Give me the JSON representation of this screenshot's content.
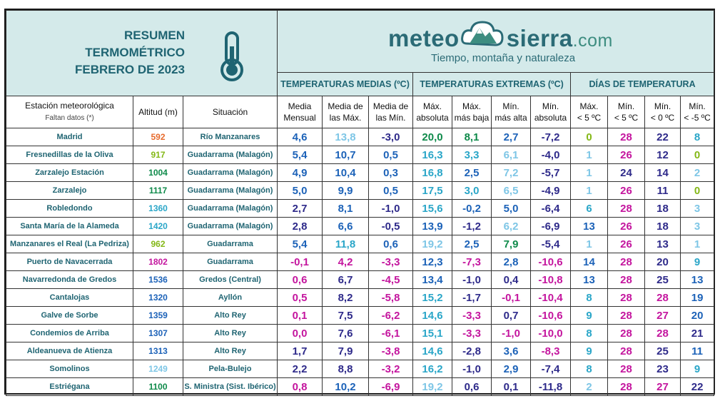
{
  "title": {
    "line1": "RESUMEN",
    "line2": "TERMOMÉTRICO",
    "line3": "FEBRERO DE 2023"
  },
  "logo": {
    "meteo": "meteo",
    "sierra": "sierra",
    "com": ".com",
    "tagline": "Tiempo, montaña y naturaleza"
  },
  "groups": {
    "medias": "TEMPERATURAS MEDIAS (ºC)",
    "extremas": "TEMPERATURAS EXTREMAS (ºC)",
    "dias": "DÍAS DE TEMPERATURA"
  },
  "headers": {
    "estacion": "Estación meteorológica",
    "faltan": "Faltan datos (*)",
    "altitud": "Altitud (m)",
    "situacion": "Situación",
    "media_mensual_1": "Media",
    "media_mensual_2": "Mensual",
    "media_max_1": "Media de",
    "media_max_2": "las Máx.",
    "media_min_1": "Media de",
    "media_min_2": "las Mín.",
    "max_abs_1": "Máx.",
    "max_abs_2": "absoluta",
    "max_baja_1": "Máx.",
    "max_baja_2": "más baja",
    "min_alta_1": "Mín.",
    "min_alta_2": "más alta",
    "min_abs_1": "Mín.",
    "min_abs_2": "absoluta",
    "d_max5_1": "Máx.",
    "d_max5_2": "< 5 ºC",
    "d_min5_1": "Mín.",
    "d_min5_2": "< 5 ºC",
    "d_min0_1": "Mín.",
    "d_min0_2": "< 0 ºC",
    "d_minm5_1": "Mín.",
    "d_minm5_2": "< -5 ºC"
  },
  "colors": {
    "blue": "#1c62b8",
    "lightblue": "#7ec6e6",
    "purple": "#2e2a8a",
    "magenta": "#c4159e",
    "green": "#0e8a4a",
    "lime": "#84b817",
    "orange": "#e76a2c",
    "teal": "#2aa6c8",
    "gray": "#5b8fb0"
  },
  "rows": [
    {
      "estacion": "Madrid",
      "altitud": "592",
      "altc": "orange",
      "situacion": "Río Manzanares",
      "v": [
        [
          "4,6",
          "blue"
        ],
        [
          "13,8",
          "lightblue"
        ],
        [
          "-3,0",
          "purple"
        ],
        [
          "20,0",
          "green"
        ],
        [
          "8,1",
          "green"
        ],
        [
          "2,7",
          "blue"
        ],
        [
          "-7,2",
          "purple"
        ]
      ],
      "d": [
        [
          "0",
          "lime"
        ],
        [
          "28",
          "magenta"
        ],
        [
          "22",
          "purple"
        ],
        [
          "8",
          "teal"
        ]
      ]
    },
    {
      "estacion": "Fresnedillas de la Oliva",
      "altitud": "917",
      "altc": "lime",
      "situacion": "Guadarrama (Malagón)",
      "v": [
        [
          "5,4",
          "blue"
        ],
        [
          "10,7",
          "blue"
        ],
        [
          "0,5",
          "blue"
        ],
        [
          "16,3",
          "teal"
        ],
        [
          "3,3",
          "teal"
        ],
        [
          "6,1",
          "lightblue"
        ],
        [
          "-4,0",
          "purple"
        ]
      ],
      "d": [
        [
          "1",
          "lightblue"
        ],
        [
          "26",
          "magenta"
        ],
        [
          "12",
          "purple"
        ],
        [
          "0",
          "lime"
        ]
      ]
    },
    {
      "estacion": "Zarzalejo Estación",
      "altitud": "1004",
      "altc": "green",
      "situacion": "Guadarrama (Malagón)",
      "v": [
        [
          "4,9",
          "blue"
        ],
        [
          "10,4",
          "blue"
        ],
        [
          "0,3",
          "blue"
        ],
        [
          "16,8",
          "teal"
        ],
        [
          "2,5",
          "blue"
        ],
        [
          "7,2",
          "lightblue"
        ],
        [
          "-5,7",
          "purple"
        ]
      ],
      "d": [
        [
          "1",
          "lightblue"
        ],
        [
          "24",
          "purple"
        ],
        [
          "14",
          "purple"
        ],
        [
          "2",
          "lightblue"
        ]
      ]
    },
    {
      "estacion": "Zarzalejo",
      "altitud": "1117",
      "altc": "green",
      "situacion": "Guadarrama (Malagón)",
      "v": [
        [
          "5,0",
          "blue"
        ],
        [
          "9,9",
          "blue"
        ],
        [
          "0,5",
          "blue"
        ],
        [
          "17,5",
          "teal"
        ],
        [
          "3,0",
          "teal"
        ],
        [
          "6,5",
          "lightblue"
        ],
        [
          "-4,9",
          "purple"
        ]
      ],
      "d": [
        [
          "1",
          "lightblue"
        ],
        [
          "26",
          "magenta"
        ],
        [
          "11",
          "purple"
        ],
        [
          "0",
          "lime"
        ]
      ]
    },
    {
      "estacion": "Robledondo",
      "altitud": "1360",
      "altc": "teal",
      "situacion": "Guadarrama (Malagón)",
      "v": [
        [
          "2,7",
          "purple"
        ],
        [
          "8,1",
          "blue"
        ],
        [
          "-1,0",
          "purple"
        ],
        [
          "15,6",
          "teal"
        ],
        [
          "-0,2",
          "blue"
        ],
        [
          "5,0",
          "blue"
        ],
        [
          "-6,4",
          "purple"
        ]
      ],
      "d": [
        [
          "6",
          "teal"
        ],
        [
          "28",
          "magenta"
        ],
        [
          "18",
          "purple"
        ],
        [
          "3",
          "lightblue"
        ]
      ]
    },
    {
      "estacion": "Santa María de la Alameda",
      "altitud": "1420",
      "altc": "teal",
      "situacion": "Guadarrama (Malagón)",
      "v": [
        [
          "2,8",
          "purple"
        ],
        [
          "6,6",
          "blue"
        ],
        [
          "-0,5",
          "purple"
        ],
        [
          "13,9",
          "blue"
        ],
        [
          "-1,2",
          "purple"
        ],
        [
          "6,2",
          "lightblue"
        ],
        [
          "-6,9",
          "purple"
        ]
      ],
      "d": [
        [
          "13",
          "blue"
        ],
        [
          "26",
          "magenta"
        ],
        [
          "18",
          "purple"
        ],
        [
          "3",
          "lightblue"
        ]
      ]
    },
    {
      "estacion": "Manzanares el Real (La Pedriza)",
      "altitud": "962",
      "altc": "lime",
      "situacion": "Guadarrama",
      "v": [
        [
          "5,4",
          "blue"
        ],
        [
          "11,8",
          "teal"
        ],
        [
          "0,6",
          "blue"
        ],
        [
          "19,2",
          "lightblue"
        ],
        [
          "2,5",
          "blue"
        ],
        [
          "7,9",
          "green"
        ],
        [
          "-5,4",
          "purple"
        ]
      ],
      "d": [
        [
          "1",
          "lightblue"
        ],
        [
          "26",
          "magenta"
        ],
        [
          "13",
          "purple"
        ],
        [
          "1",
          "lightblue"
        ]
      ]
    },
    {
      "estacion": "Puerto de Navacerrada",
      "altitud": "1802",
      "altc": "magenta",
      "situacion": "Guadarrama",
      "v": [
        [
          "-0,1",
          "magenta"
        ],
        [
          "4,2",
          "magenta"
        ],
        [
          "-3,3",
          "magenta"
        ],
        [
          "12,3",
          "blue"
        ],
        [
          "-7,3",
          "magenta"
        ],
        [
          "2,8",
          "blue"
        ],
        [
          "-10,6",
          "magenta"
        ]
      ],
      "d": [
        [
          "14",
          "blue"
        ],
        [
          "28",
          "magenta"
        ],
        [
          "20",
          "purple"
        ],
        [
          "9",
          "teal"
        ]
      ]
    },
    {
      "estacion": "Navarredonda de Gredos",
      "altitud": "1536",
      "altc": "blue",
      "situacion": "Gredos (Central)",
      "v": [
        [
          "0,6",
          "magenta"
        ],
        [
          "6,7",
          "purple"
        ],
        [
          "-4,5",
          "magenta"
        ],
        [
          "13,4",
          "blue"
        ],
        [
          "-1,0",
          "purple"
        ],
        [
          "0,4",
          "purple"
        ],
        [
          "-10,8",
          "magenta"
        ]
      ],
      "d": [
        [
          "13",
          "blue"
        ],
        [
          "28",
          "magenta"
        ],
        [
          "25",
          "purple"
        ],
        [
          "13",
          "blue"
        ]
      ]
    },
    {
      "estacion": "Cantalojas",
      "altitud": "1320",
      "altc": "blue",
      "situacion": "Ayllón",
      "v": [
        [
          "0,5",
          "magenta"
        ],
        [
          "8,2",
          "purple"
        ],
        [
          "-5,8",
          "magenta"
        ],
        [
          "15,2",
          "teal"
        ],
        [
          "-1,7",
          "purple"
        ],
        [
          "-0,1",
          "magenta"
        ],
        [
          "-10,4",
          "magenta"
        ]
      ],
      "d": [
        [
          "8",
          "teal"
        ],
        [
          "28",
          "magenta"
        ],
        [
          "28",
          "magenta"
        ],
        [
          "19",
          "blue"
        ]
      ]
    },
    {
      "estacion": "Galve de Sorbe",
      "altitud": "1359",
      "altc": "blue",
      "situacion": "Alto Rey",
      "v": [
        [
          "0,1",
          "magenta"
        ],
        [
          "7,5",
          "purple"
        ],
        [
          "-6,2",
          "magenta"
        ],
        [
          "14,6",
          "teal"
        ],
        [
          "-3,3",
          "magenta"
        ],
        [
          "0,7",
          "purple"
        ],
        [
          "-10,6",
          "magenta"
        ]
      ],
      "d": [
        [
          "9",
          "teal"
        ],
        [
          "28",
          "magenta"
        ],
        [
          "27",
          "magenta"
        ],
        [
          "20",
          "blue"
        ]
      ]
    },
    {
      "estacion": "Condemios de Arriba",
      "altitud": "1307",
      "altc": "blue",
      "situacion": "Alto Rey",
      "v": [
        [
          "0,0",
          "magenta"
        ],
        [
          "7,6",
          "purple"
        ],
        [
          "-6,1",
          "magenta"
        ],
        [
          "15,1",
          "teal"
        ],
        [
          "-3,3",
          "magenta"
        ],
        [
          "-1,0",
          "magenta"
        ],
        [
          "-10,0",
          "magenta"
        ]
      ],
      "d": [
        [
          "8",
          "teal"
        ],
        [
          "28",
          "magenta"
        ],
        [
          "28",
          "magenta"
        ],
        [
          "21",
          "purple"
        ]
      ]
    },
    {
      "estacion": "Aldeanueva de Atienza",
      "altitud": "1313",
      "altc": "blue",
      "situacion": "Alto Rey",
      "v": [
        [
          "1,7",
          "purple"
        ],
        [
          "7,9",
          "purple"
        ],
        [
          "-3,8",
          "magenta"
        ],
        [
          "14,6",
          "teal"
        ],
        [
          "-2,8",
          "purple"
        ],
        [
          "3,6",
          "blue"
        ],
        [
          "-8,3",
          "magenta"
        ]
      ],
      "d": [
        [
          "9",
          "teal"
        ],
        [
          "28",
          "magenta"
        ],
        [
          "25",
          "purple"
        ],
        [
          "11",
          "blue"
        ]
      ]
    },
    {
      "estacion": "Somolinos",
      "altitud": "1249",
      "altc": "lightblue",
      "situacion": "Pela-Bulejo",
      "v": [
        [
          "2,2",
          "purple"
        ],
        [
          "8,8",
          "purple"
        ],
        [
          "-3,2",
          "magenta"
        ],
        [
          "16,2",
          "teal"
        ],
        [
          "-1,0",
          "purple"
        ],
        [
          "2,9",
          "blue"
        ],
        [
          "-7,4",
          "purple"
        ]
      ],
      "d": [
        [
          "8",
          "teal"
        ],
        [
          "28",
          "magenta"
        ],
        [
          "23",
          "purple"
        ],
        [
          "9",
          "teal"
        ]
      ]
    },
    {
      "estacion": "Estriégana",
      "altitud": "1100",
      "altc": "green",
      "situacion": "S. Ministra (Sist. Ibérico)",
      "v": [
        [
          "0,8",
          "magenta"
        ],
        [
          "10,2",
          "blue"
        ],
        [
          "-6,9",
          "magenta"
        ],
        [
          "19,2",
          "lightblue"
        ],
        [
          "0,6",
          "purple"
        ],
        [
          "0,1",
          "purple"
        ],
        [
          "-11,8",
          "purple"
        ]
      ],
      "d": [
        [
          "2",
          "lightblue"
        ],
        [
          "28",
          "magenta"
        ],
        [
          "27",
          "magenta"
        ],
        [
          "22",
          "purple"
        ]
      ]
    }
  ]
}
